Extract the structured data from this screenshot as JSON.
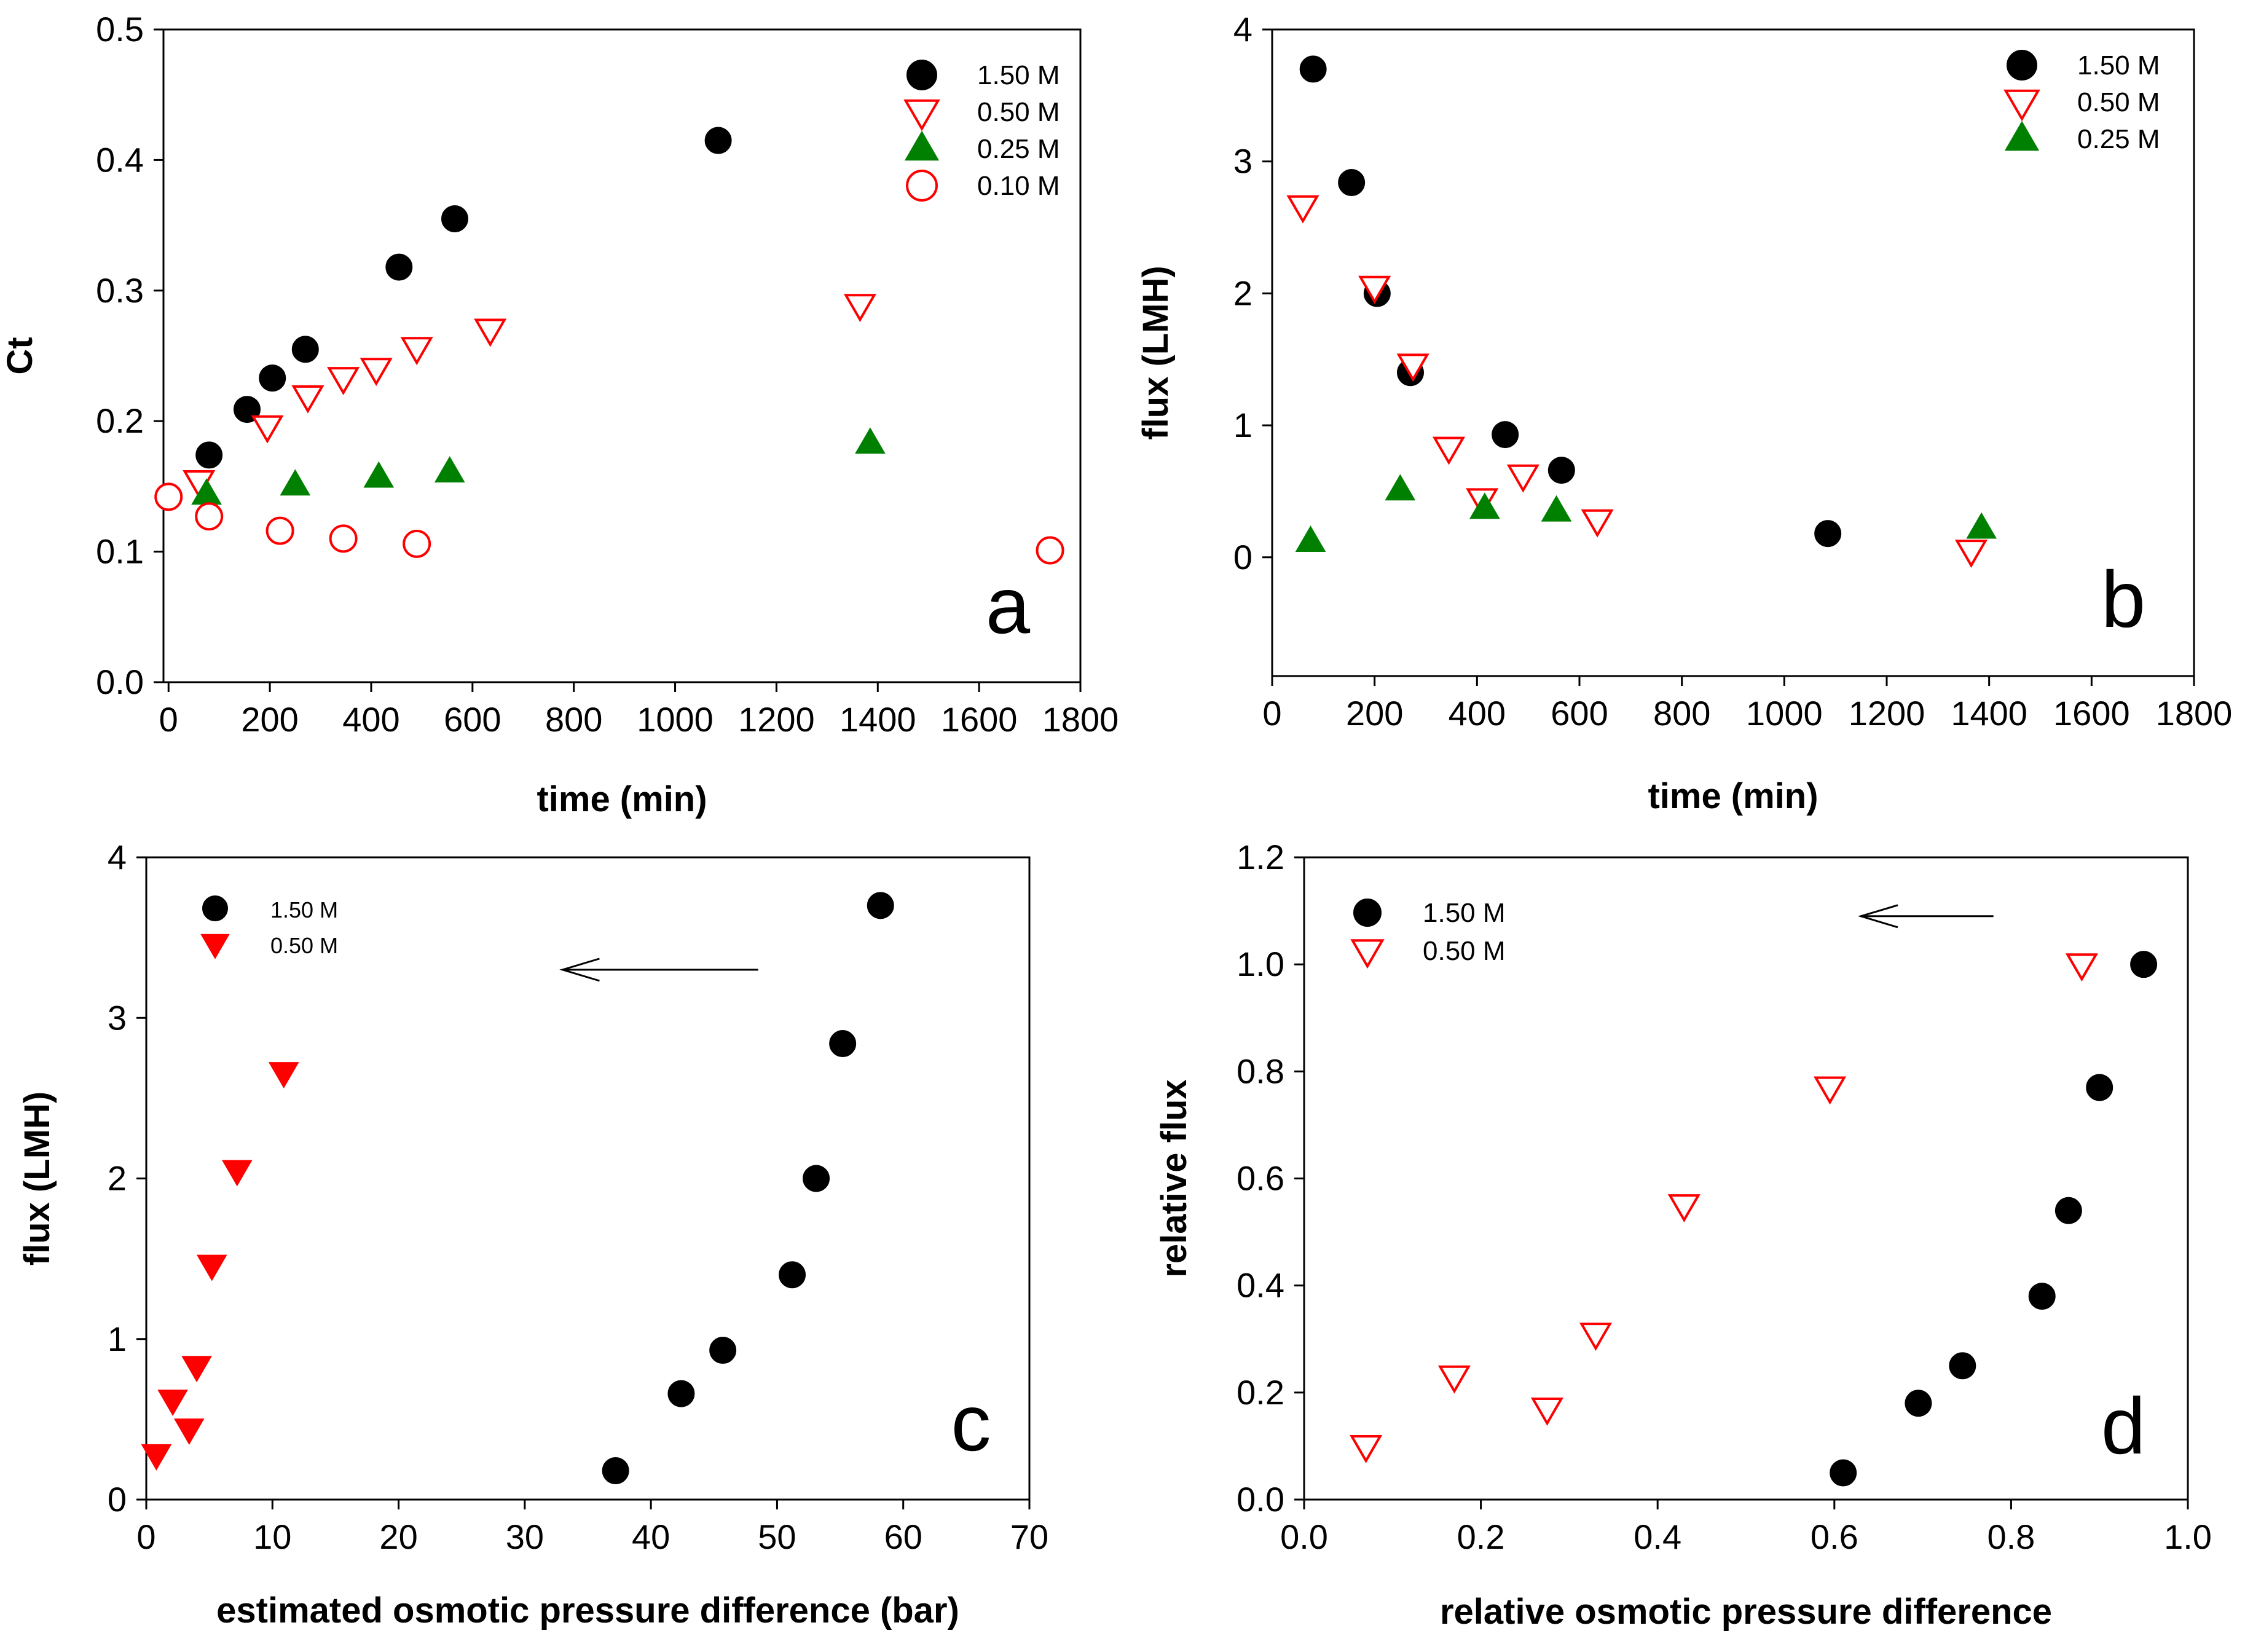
{
  "colors": {
    "black": "#000000",
    "red": "#ff0000",
    "green": "#008000"
  },
  "chart_data": [
    {
      "type": "scatter",
      "panel_label": "a",
      "xlabel": "time (min)",
      "ylabel": "Ct",
      "xlim": [
        -10,
        1800
      ],
      "ylim": [
        0,
        0.5
      ],
      "xticks": [
        "0",
        "200",
        "400",
        "600",
        "800",
        "1000",
        "1200",
        "1400",
        "1600",
        "1800"
      ],
      "yticks": [
        "0.0",
        "0.1",
        "0.2",
        "0.3",
        "0.4",
        "0.5"
      ],
      "legend_position": "top-right",
      "series": [
        {
          "name": "1.50 M",
          "marker": "filled-circle",
          "color": "#000000",
          "x": [
            80,
            155,
            205,
            270,
            455,
            565,
            1085
          ],
          "y": [
            0.174,
            0.209,
            0.233,
            0.255,
            0.318,
            0.355,
            0.415
          ]
        },
        {
          "name": "0.50 M",
          "marker": "open-triangle-down",
          "color": "#ff0000",
          "x": [
            60,
            195,
            275,
            345,
            410,
            490,
            635,
            1365
          ],
          "y": [
            0.154,
            0.196,
            0.219,
            0.233,
            0.24,
            0.256,
            0.27,
            0.289
          ]
        },
        {
          "name": "0.25 M",
          "marker": "filled-triangle-up",
          "color": "#008000",
          "x": [
            75,
            250,
            415,
            555,
            1385
          ],
          "y": [
            0.144,
            0.151,
            0.157,
            0.161,
            0.183
          ]
        },
        {
          "name": "0.10 M",
          "marker": "open-circle",
          "color": "#ff0000",
          "x": [
            0,
            80,
            220,
            345,
            490,
            1740
          ],
          "y": [
            0.142,
            0.127,
            0.116,
            0.11,
            0.106,
            0.101
          ]
        }
      ]
    },
    {
      "type": "scatter",
      "panel_label": "b",
      "xlabel": "time (min)",
      "ylabel": "flux (LMH)",
      "xlim": [
        0,
        1800
      ],
      "ylim": [
        -0.9,
        4
      ],
      "xticks": [
        "0",
        "200",
        "400",
        "600",
        "800",
        "1000",
        "1200",
        "1400",
        "1600",
        "1800"
      ],
      "yticks": [
        "0",
        "1",
        "2",
        "3",
        "4"
      ],
      "legend_position": "top-right",
      "series": [
        {
          "name": "1.50 M",
          "marker": "filled-circle",
          "color": "#000000",
          "x": [
            80,
            155,
            205,
            270,
            455,
            565,
            1085
          ],
          "y": [
            3.7,
            2.84,
            2.0,
            1.4,
            0.93,
            0.66,
            0.18
          ]
        },
        {
          "name": "0.50 M",
          "marker": "open-triangle-down",
          "color": "#ff0000",
          "x": [
            60,
            200,
            275,
            345,
            410,
            490,
            635,
            1365
          ],
          "y": [
            2.66,
            2.05,
            1.46,
            0.83,
            0.44,
            0.62,
            0.28,
            0.05
          ]
        },
        {
          "name": "0.25 M",
          "marker": "filled-triangle-up",
          "color": "#008000",
          "x": [
            75,
            250,
            415,
            555,
            1385
          ],
          "y": [
            0.12,
            0.51,
            0.37,
            0.35,
            0.22
          ]
        }
      ]
    },
    {
      "type": "scatter",
      "panel_label": "c",
      "xlabel": "estimated osmotic pressure difference (bar)",
      "ylabel": "flux (LMH)",
      "xlim": [
        0,
        70
      ],
      "ylim": [
        0,
        4
      ],
      "xticks": [
        "0",
        "10",
        "20",
        "30",
        "40",
        "50",
        "60",
        "70"
      ],
      "yticks": [
        "0",
        "1",
        "2",
        "3",
        "4"
      ],
      "legend_position": "top-left",
      "arrow": {
        "from": [
          48.5,
          3.3
        ],
        "to": [
          33,
          3.3
        ]
      },
      "series": [
        {
          "name": "1.50 M",
          "marker": "filled-circle",
          "color": "#000000",
          "x": [
            37.2,
            42.4,
            45.7,
            51.2,
            53.1,
            55.2,
            58.2
          ],
          "y": [
            0.18,
            0.66,
            0.93,
            1.4,
            2.0,
            2.84,
            3.7
          ]
        },
        {
          "name": "0.50 M",
          "marker": "filled-triangle-down",
          "color": "#ff0000",
          "x": [
            0.8,
            2.1,
            3.4,
            4.0,
            5.2,
            7.2,
            10.9
          ],
          "y": [
            0.28,
            0.62,
            0.44,
            0.83,
            1.46,
            2.05,
            2.66
          ]
        }
      ]
    },
    {
      "type": "scatter",
      "panel_label": "d",
      "xlabel": "relative osmotic pressure difference",
      "ylabel": "relative flux",
      "xlim": [
        0,
        1
      ],
      "ylim": [
        0,
        1.2
      ],
      "xticks": [
        "0.0",
        "0.2",
        "0.4",
        "0.6",
        "0.8",
        "1.0"
      ],
      "yticks": [
        "0.0",
        "0.2",
        "0.4",
        "0.6",
        "0.8",
        "1.0",
        "1.2"
      ],
      "legend_position": "top-left",
      "arrow": {
        "from": [
          0.78,
          1.09
        ],
        "to": [
          0.63,
          1.09
        ]
      },
      "series": [
        {
          "name": "1.50 M",
          "marker": "filled-circle",
          "color": "#000000",
          "x": [
            0.61,
            0.695,
            0.745,
            0.835,
            0.865,
            0.9,
            0.95
          ],
          "y": [
            0.05,
            0.18,
            0.25,
            0.38,
            0.54,
            0.77,
            1.0
          ]
        },
        {
          "name": "0.50 M",
          "marker": "open-triangle-down",
          "color": "#ff0000",
          "x": [
            0.07,
            0.17,
            0.275,
            0.33,
            0.43,
            0.595,
            0.88
          ],
          "y": [
            0.1,
            0.23,
            0.17,
            0.31,
            0.55,
            0.77,
            1.0
          ]
        }
      ]
    }
  ]
}
